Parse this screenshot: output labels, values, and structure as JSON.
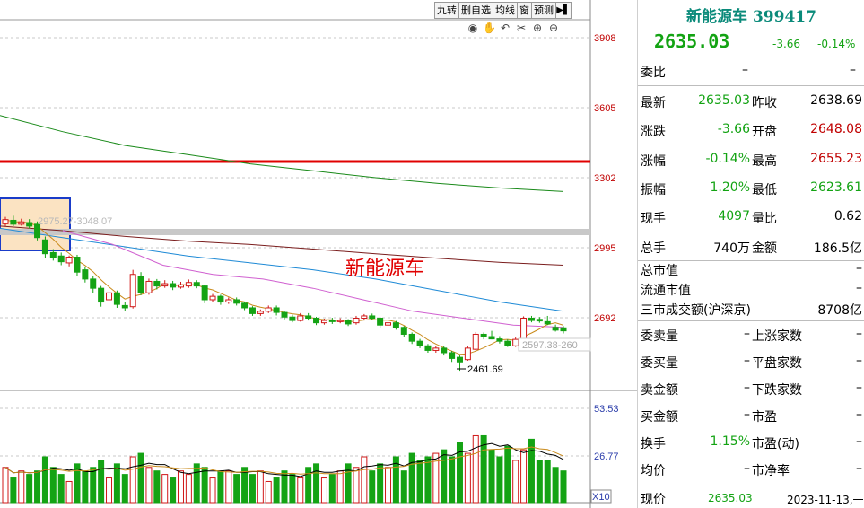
{
  "toolbar": {
    "buttons": [
      "九转",
      "删自选",
      "均线",
      "窗",
      "预测"
    ],
    "arrow_icon": "play-pause-icon"
  },
  "chart_tools": [
    "eye-icon",
    "hand-icon",
    "undo-icon",
    "scissors-icon",
    "zoom-in-icon",
    "zoom-out-icon"
  ],
  "price_axis": {
    "ticks": [
      "3908",
      "3605",
      "3302",
      "2995",
      "2692"
    ],
    "tick_values": [
      3908,
      3605,
      3302,
      2995,
      2692
    ]
  },
  "volume_axis": {
    "ticks": [
      "53.53",
      "26.77"
    ],
    "unit_box": "X10"
  },
  "annotations": {
    "box_label": "2975.27-3048.07",
    "range_label": "2597.38-260",
    "low_label": "2461.69",
    "chart_title": "新能源车"
  },
  "chart_data": {
    "type": "candlestick",
    "title": "新能源车",
    "y_range": [
      2400,
      4000
    ],
    "candles": [
      {
        "o": 3100,
        "c": 3118,
        "h": 3130,
        "l": 3088
      },
      {
        "o": 3115,
        "c": 3098,
        "h": 3135,
        "l": 3090
      },
      {
        "o": 3098,
        "c": 3108,
        "h": 3122,
        "l": 3092
      },
      {
        "o": 3105,
        "c": 3090,
        "h": 3120,
        "l": 3080
      },
      {
        "o": 3098,
        "c": 3040,
        "h": 3110,
        "l": 3028
      },
      {
        "o": 3030,
        "c": 2970,
        "h": 3045,
        "l": 2950
      },
      {
        "o": 2975,
        "c": 2955,
        "h": 2990,
        "l": 2940
      },
      {
        "o": 2960,
        "c": 2935,
        "h": 2975,
        "l": 2920
      },
      {
        "o": 2930,
        "c": 2955,
        "h": 2962,
        "l": 2915
      },
      {
        "o": 2955,
        "c": 2890,
        "h": 2965,
        "l": 2875
      },
      {
        "o": 2900,
        "c": 2860,
        "h": 2912,
        "l": 2845
      },
      {
        "o": 2860,
        "c": 2820,
        "h": 2875,
        "l": 2800
      },
      {
        "o": 2820,
        "c": 2760,
        "h": 2830,
        "l": 2740
      },
      {
        "o": 2770,
        "c": 2800,
        "h": 2815,
        "l": 2755
      },
      {
        "o": 2800,
        "c": 2750,
        "h": 2810,
        "l": 2735
      },
      {
        "o": 2745,
        "c": 2735,
        "h": 2760,
        "l": 2720
      },
      {
        "o": 2740,
        "c": 2880,
        "h": 2900,
        "l": 2732
      },
      {
        "o": 2870,
        "c": 2800,
        "h": 2890,
        "l": 2790
      },
      {
        "o": 2800,
        "c": 2850,
        "h": 2862,
        "l": 2792
      },
      {
        "o": 2850,
        "c": 2830,
        "h": 2860,
        "l": 2815
      },
      {
        "o": 2830,
        "c": 2840,
        "h": 2855,
        "l": 2822
      },
      {
        "o": 2840,
        "c": 2825,
        "h": 2852,
        "l": 2812
      },
      {
        "o": 2825,
        "c": 2835,
        "h": 2848,
        "l": 2818
      },
      {
        "o": 2830,
        "c": 2845,
        "h": 2858,
        "l": 2822
      },
      {
        "o": 2845,
        "c": 2830,
        "h": 2855,
        "l": 2820
      },
      {
        "o": 2830,
        "c": 2770,
        "h": 2836,
        "l": 2755
      },
      {
        "o": 2770,
        "c": 2785,
        "h": 2795,
        "l": 2760
      },
      {
        "o": 2785,
        "c": 2760,
        "h": 2792,
        "l": 2748
      },
      {
        "o": 2760,
        "c": 2770,
        "h": 2780,
        "l": 2752
      },
      {
        "o": 2770,
        "c": 2755,
        "h": 2780,
        "l": 2745
      },
      {
        "o": 2755,
        "c": 2735,
        "h": 2762,
        "l": 2725
      },
      {
        "o": 2735,
        "c": 2710,
        "h": 2742,
        "l": 2700
      },
      {
        "o": 2710,
        "c": 2720,
        "h": 2728,
        "l": 2700
      },
      {
        "o": 2720,
        "c": 2735,
        "h": 2745,
        "l": 2712
      },
      {
        "o": 2735,
        "c": 2715,
        "h": 2745,
        "l": 2702
      },
      {
        "o": 2715,
        "c": 2695,
        "h": 2720,
        "l": 2685
      },
      {
        "o": 2695,
        "c": 2680,
        "h": 2705,
        "l": 2672
      },
      {
        "o": 2680,
        "c": 2700,
        "h": 2712,
        "l": 2675
      },
      {
        "o": 2700,
        "c": 2690,
        "h": 2712,
        "l": 2680
      },
      {
        "o": 2690,
        "c": 2670,
        "h": 2696,
        "l": 2660
      },
      {
        "o": 2670,
        "c": 2680,
        "h": 2688,
        "l": 2662
      },
      {
        "o": 2680,
        "c": 2675,
        "h": 2692,
        "l": 2665
      },
      {
        "o": 2675,
        "c": 2680,
        "h": 2690,
        "l": 2668
      },
      {
        "o": 2680,
        "c": 2665,
        "h": 2686,
        "l": 2656
      },
      {
        "o": 2670,
        "c": 2690,
        "h": 2700,
        "l": 2662
      },
      {
        "o": 2690,
        "c": 2700,
        "h": 2708,
        "l": 2684
      },
      {
        "o": 2700,
        "c": 2690,
        "h": 2710,
        "l": 2682
      },
      {
        "o": 2690,
        "c": 2660,
        "h": 2696,
        "l": 2648
      },
      {
        "o": 2660,
        "c": 2670,
        "h": 2678,
        "l": 2652
      },
      {
        "o": 2670,
        "c": 2650,
        "h": 2678,
        "l": 2640
      },
      {
        "o": 2650,
        "c": 2620,
        "h": 2656,
        "l": 2608
      },
      {
        "o": 2620,
        "c": 2590,
        "h": 2628,
        "l": 2578
      },
      {
        "o": 2590,
        "c": 2570,
        "h": 2600,
        "l": 2560
      },
      {
        "o": 2570,
        "c": 2550,
        "h": 2578,
        "l": 2540
      },
      {
        "o": 2550,
        "c": 2560,
        "h": 2570,
        "l": 2540
      },
      {
        "o": 2560,
        "c": 2540,
        "h": 2570,
        "l": 2528
      },
      {
        "o": 2540,
        "c": 2515,
        "h": 2548,
        "l": 2500
      },
      {
        "o": 2520,
        "c": 2500,
        "h": 2528,
        "l": 2461.69
      },
      {
        "o": 2510,
        "c": 2560,
        "h": 2568,
        "l": 2505
      },
      {
        "o": 2555,
        "c": 2620,
        "h": 2630,
        "l": 2550
      },
      {
        "o": 2620,
        "c": 2610,
        "h": 2628,
        "l": 2598
      },
      {
        "o": 2610,
        "c": 2600,
        "h": 2635,
        "l": 2598
      },
      {
        "o": 2600,
        "c": 2590,
        "h": 2612,
        "l": 2580
      },
      {
        "o": 2590,
        "c": 2570,
        "h": 2598,
        "l": 2565
      },
      {
        "o": 2570,
        "c": 2598,
        "h": 2606,
        "l": 2565
      },
      {
        "o": 2598,
        "c": 2690,
        "h": 2698,
        "l": 2592
      },
      {
        "o": 2690,
        "c": 2680,
        "h": 2700,
        "l": 2672
      },
      {
        "o": 2685,
        "c": 2678,
        "h": 2695,
        "l": 2670
      },
      {
        "o": 2675,
        "c": 2665,
        "h": 2700,
        "l": 2660
      },
      {
        "o": 2650,
        "c": 2638,
        "h": 2662,
        "l": 2632
      },
      {
        "o": 2648.08,
        "c": 2635.03,
        "h": 2655.23,
        "l": 2623.61
      }
    ],
    "ma_lines": [
      {
        "name": "ma-green",
        "color": "#1a8a1a",
        "values": [
          3570,
          3500,
          3440,
          3400,
          3360,
          3330,
          3300,
          3275,
          3255,
          3240
        ]
      },
      {
        "name": "ma-brown",
        "color": "#7a1d1d",
        "values": [
          3090,
          3070,
          3045,
          3025,
          3010,
          2990,
          2970,
          2950,
          2932,
          2920
        ]
      },
      {
        "name": "ma-blue",
        "color": "#1e8ad6",
        "values": [
          3080,
          3040,
          3000,
          2960,
          2930,
          2900,
          2860,
          2810,
          2760,
          2720
        ]
      },
      {
        "name": "ma-pink",
        "color": "#d060d0",
        "values": [
          3070,
          3010,
          2920,
          2880,
          2860,
          2820,
          2770,
          2720,
          2690,
          2660,
          2650
        ]
      }
    ],
    "red_line": 3338,
    "gray_band": 3018,
    "volume": [
      20,
      14,
      18,
      16,
      18,
      26,
      20,
      16,
      12,
      22,
      18,
      20,
      24,
      14,
      22,
      16,
      26,
      28,
      20,
      18,
      16,
      14,
      18,
      16,
      22,
      20,
      14,
      18,
      18,
      16,
      20,
      16,
      18,
      12,
      14,
      18,
      16,
      14,
      20,
      22,
      14,
      16,
      18,
      22,
      20,
      26,
      18,
      22,
      20,
      26,
      18,
      28,
      24,
      26,
      28,
      30,
      26,
      34,
      28,
      38,
      38,
      30,
      26,
      32,
      24,
      30,
      36,
      24,
      24,
      20,
      18
    ]
  },
  "panel": {
    "title": "新能源车 399417",
    "price": "2635.03",
    "change": "-3.66",
    "change_pct": "-0.14%",
    "weibi_label": "委比",
    "weibi_value1": "–",
    "weibi_value2": "–",
    "quote_rows": [
      {
        "l1": "最新",
        "v1": "2635.03",
        "l2": "昨收",
        "v2": "2638.69",
        "c1": "g",
        "c2": "k"
      },
      {
        "l1": "涨跌",
        "v1": "-3.66",
        "l2": "开盘",
        "v2": "2648.08",
        "c1": "g",
        "c2": "r"
      },
      {
        "l1": "涨幅",
        "v1": "-0.14%",
        "l2": "最高",
        "v2": "2655.23",
        "c1": "g",
        "c2": "r"
      },
      {
        "l1": "振幅",
        "v1": "1.20%",
        "l2": "最低",
        "v2": "2623.61",
        "c1": "g",
        "c2": "g"
      },
      {
        "l1": "现手",
        "v1": "4097",
        "l2": "量比",
        "v2": "0.62",
        "c1": "g",
        "c2": "k"
      },
      {
        "l1": "总手",
        "v1": "740万",
        "l2": "金额",
        "v2": "186.5亿",
        "c1": "k",
        "c2": "k"
      }
    ],
    "mkt_rows": [
      {
        "l": "总市值",
        "v": "–"
      },
      {
        "l": "流通市值",
        "v": "–"
      },
      {
        "l": "三市成交额(沪深京)",
        "v": "8708亿"
      }
    ],
    "stat_rows": [
      {
        "l1": "委卖量",
        "v1": "–",
        "l2": "上涨家数",
        "v2": "–"
      },
      {
        "l1": "委买量",
        "v1": "–",
        "l2": "平盘家数",
        "v2": "–"
      },
      {
        "l1": "卖金额",
        "v1": "–",
        "l2": "下跌家数",
        "v2": "–"
      },
      {
        "l1": "买金额",
        "v1": "–",
        "l2": "市盈",
        "v2": "–"
      },
      {
        "l1": "换手",
        "v1": "1.15%",
        "l2": "市盈(动)",
        "v2": "–"
      },
      {
        "l1": "均价",
        "v1": "–",
        "l2": "市净率",
        "v2": "–"
      }
    ],
    "bottom": {
      "label": "现价",
      "price": "2635.03",
      "date": "2023-11-13,一"
    }
  }
}
